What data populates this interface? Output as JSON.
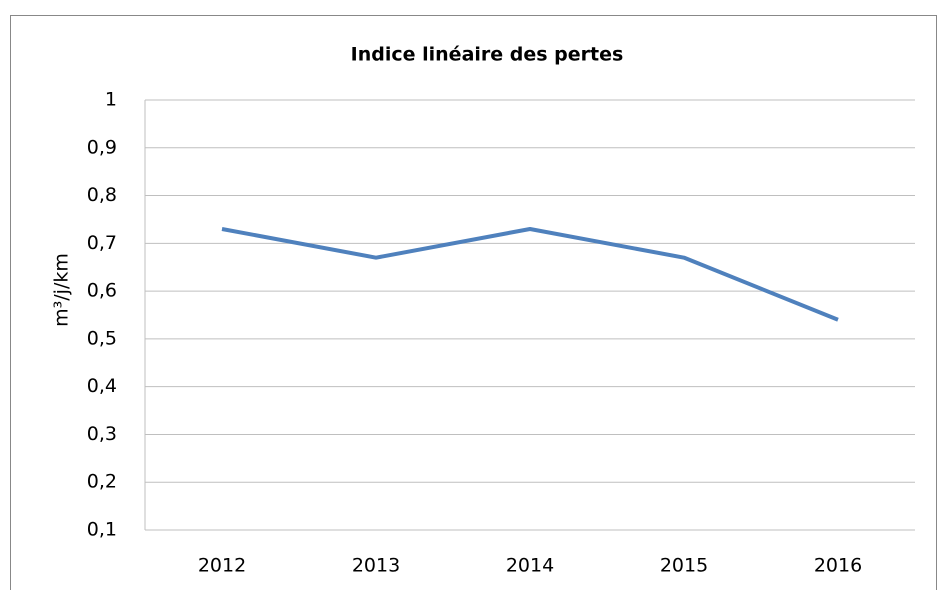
{
  "chart_data": {
    "type": "line",
    "title": "Indice linéaire des pertes",
    "y_label": "m³/j/km",
    "categories": [
      "2012",
      "2013",
      "2014",
      "2015",
      "2016"
    ],
    "series": [
      {
        "name": "Indice linéaire des pertes",
        "color": "#4f81bd",
        "values": [
          0.73,
          0.67,
          0.73,
          0.67,
          0.54
        ]
      }
    ],
    "ylim": [
      0.1,
      1
    ],
    "yticks": [
      {
        "value": 0.1,
        "label": "0,1"
      },
      {
        "value": 0.2,
        "label": "0,2"
      },
      {
        "value": 0.3,
        "label": "0,3"
      },
      {
        "value": 0.4,
        "label": "0,4"
      },
      {
        "value": 0.5,
        "label": "0,5"
      },
      {
        "value": 0.6,
        "label": "0,6"
      },
      {
        "value": 0.7,
        "label": "0,7"
      },
      {
        "value": 0.8,
        "label": "0,8"
      },
      {
        "value": 0.9,
        "label": "0,9"
      },
      1
    ],
    "grid": true,
    "legend": false
  }
}
